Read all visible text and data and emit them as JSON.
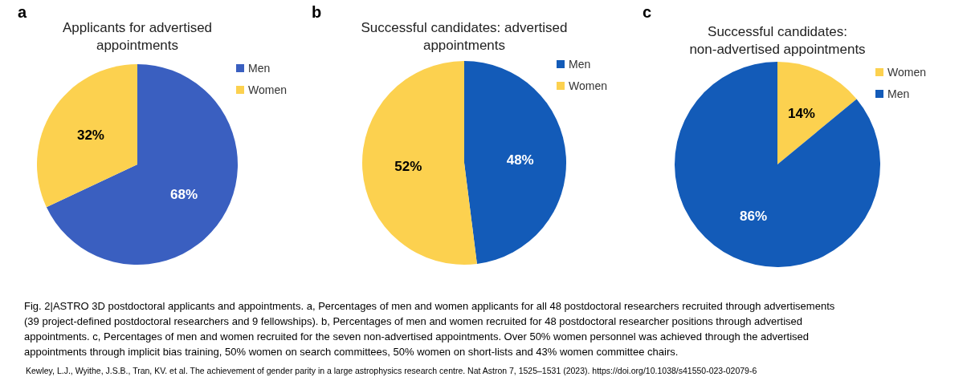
{
  "chart_data": [
    {
      "type": "pie",
      "title": "Applicants for advertised appointments",
      "categories": [
        "Men",
        "Women"
      ],
      "values": [
        68,
        32
      ],
      "colors": [
        "#3a5fc0",
        "#fcd14f"
      ],
      "value_labels": [
        "68%",
        "32%"
      ],
      "legend": "right",
      "annotations": [
        "a"
      ]
    },
    {
      "type": "pie",
      "title": "Successful candidates: advertised appointments",
      "categories": [
        "Men",
        "Women"
      ],
      "values": [
        48,
        52
      ],
      "colors": [
        "#135bb8",
        "#fcd14f"
      ],
      "value_labels": [
        "48%",
        "52%"
      ],
      "legend": "right",
      "annotations": [
        "b"
      ]
    },
    {
      "type": "pie",
      "title": "Successful candidates: non-advertised appointments",
      "categories": [
        "Women",
        "Men"
      ],
      "values": [
        14,
        86
      ],
      "colors": [
        "#fcd14f",
        "#135bb8"
      ],
      "value_labels": [
        "14%",
        "86%"
      ],
      "legend": "right",
      "annotations": [
        "c",
        "Fig. 2|ASTRO 3D postdoctoral applicants and appointments. a, Percentages of men and women applicants for all 48 postdoctoral researchers recruited through advertisements",
        "(39 project-defined postdoctoral researchers and 9 fellowships). b, Percentages of men and women recruited for 48 postdoctoral researcher positions through advertised",
        "appointments. c, Percentages of men and women recruited for the seven non-advertised appointments. Over 50% women personnel was achieved through the advertised",
        "appointments through implicit bias training, 50% women on search committees, 50% women on short-lists and 43% women committee chairs.",
        "Kewley, L.J., Wyithe, J.S.B., Tran, KV. et al. The achievement of gender parity in a large astrophysics research centre. Nat Astron 7, 1525–1531 (2023). https://doi.org/10.1038/s41550-023-02079-6"
      ]
    }
  ]
}
